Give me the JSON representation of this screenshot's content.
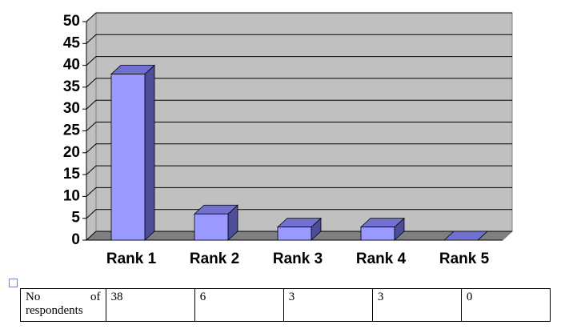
{
  "chart_data": {
    "type": "bar3d",
    "categories": [
      "Rank 1",
      "Rank 2",
      "Rank 3",
      "Rank 4",
      "Rank 5"
    ],
    "values": [
      38,
      6,
      3,
      3,
      0
    ],
    "color": "#9999ff",
    "ylim": [
      0,
      50
    ],
    "yticks": [
      0,
      5,
      10,
      15,
      20,
      25,
      30,
      35,
      40,
      45,
      50
    ],
    "grid": true
  },
  "table": {
    "row_label": "No of respondents"
  }
}
